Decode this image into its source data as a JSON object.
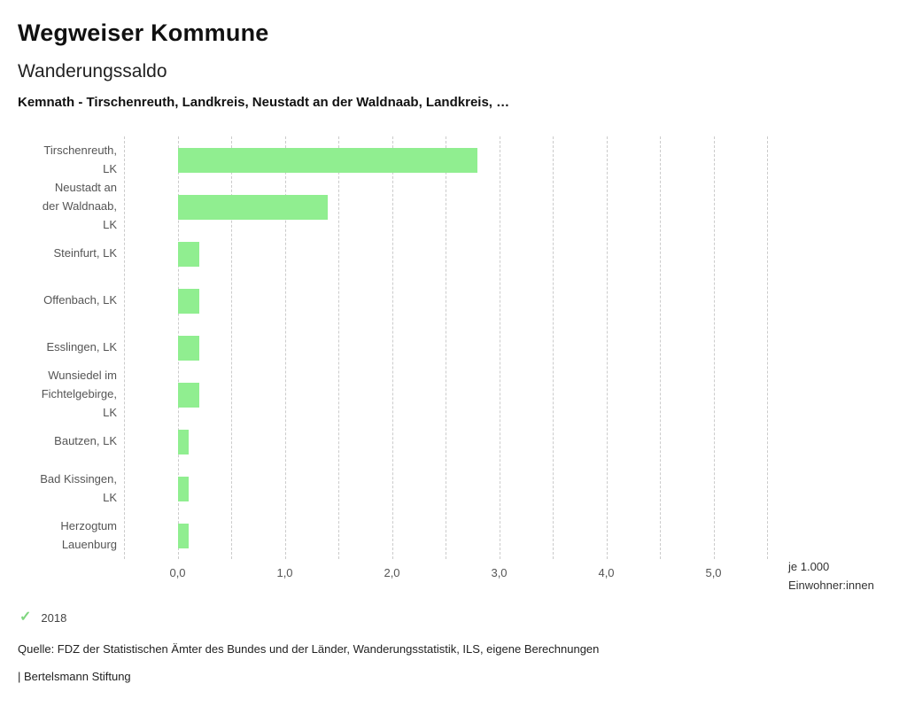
{
  "header": {
    "title": "Wegweiser Kommune",
    "subtitle": "Wanderungssaldo",
    "description": "Kemnath - Tirschenreuth, Landkreis, Neustadt an der Waldnaab, Landkreis, …"
  },
  "chart_data": {
    "type": "bar",
    "orientation": "horizontal",
    "title": "Wanderungssaldo",
    "categories": [
      "Tirschenreuth, LK",
      "Neustadt an der Waldnaab, LK",
      "Steinfurt, LK",
      "Offenbach, LK",
      "Esslingen, LK",
      "Wunsiedel im Fichtelgebirge, LK",
      "Bautzen, LK",
      "Bad Kissingen, LK",
      "Herzogtum Lauenburg"
    ],
    "category_label_lines": [
      [
        "Tirschenreuth,",
        "LK"
      ],
      [
        "Neustadt an",
        "der Waldnaab,",
        "LK"
      ],
      [
        "Steinfurt, LK"
      ],
      [
        "Offenbach, LK"
      ],
      [
        "Esslingen, LK"
      ],
      [
        "Wunsiedel im",
        "Fichtelgebirge,",
        "LK"
      ],
      [
        "Bautzen, LK"
      ],
      [
        "Bad Kissingen,",
        "LK"
      ],
      [
        "Herzogtum",
        "Lauenburg"
      ]
    ],
    "series": [
      {
        "name": "2018",
        "values": [
          2.8,
          1.4,
          0.2,
          0.2,
          0.2,
          0.2,
          0.1,
          0.1,
          0.1
        ]
      }
    ],
    "xlim": [
      -0.5,
      5.5
    ],
    "xticks": [
      0,
      1,
      2,
      3,
      4,
      5
    ],
    "xtick_labels": [
      "0,0",
      "1,0",
      "2,0",
      "3,0",
      "4,0",
      "5,0"
    ],
    "gridline_step": 0.5,
    "grid": "vertical-dashed",
    "bar_color": "#90ee90",
    "unit_label_lines": [
      "je 1.000",
      "Einwohner:innen"
    ]
  },
  "legend": {
    "check_icon": "✓",
    "label": "2018",
    "check_color": "#7fd67f"
  },
  "footer": {
    "source": "Quelle: FDZ der Statistischen Ämter des Bundes und der Länder, Wanderungsstatistik, ILS, eigene Berechnungen",
    "branding": "| Bertelsmann Stiftung"
  }
}
